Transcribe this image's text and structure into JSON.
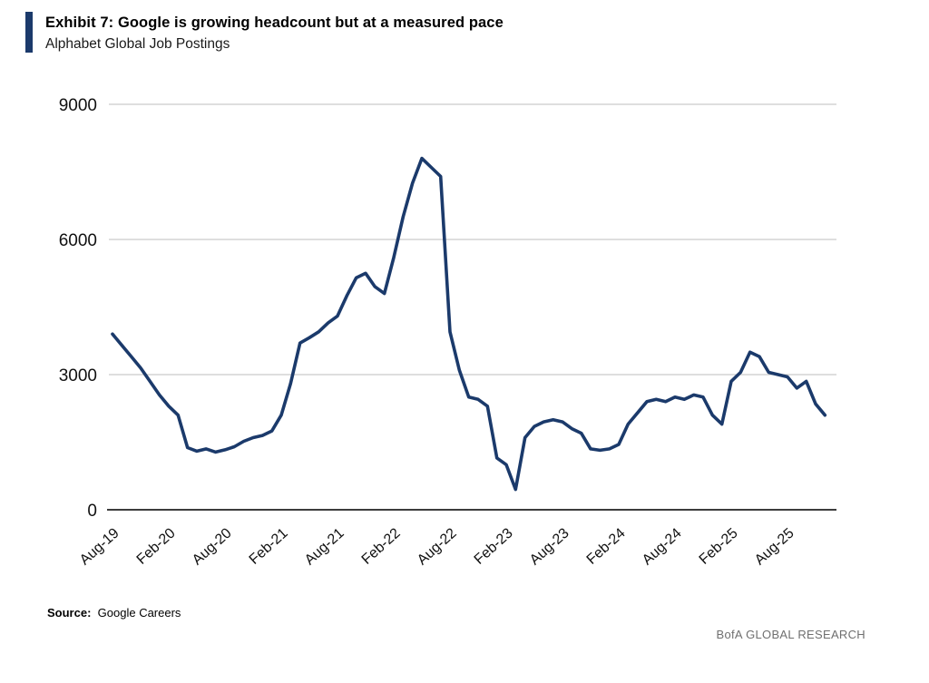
{
  "header": {
    "exhibit_title": "Exhibit 7: Google is growing headcount but at a measured pace",
    "subtitle": "Alphabet Global Job Postings"
  },
  "footer": {
    "source_label": "Source:",
    "source_text": "Google Careers",
    "branding": "BofA GLOBAL RESEARCH"
  },
  "colors": {
    "line": "#1b3a6b",
    "accent_bar": "#1b3a6b",
    "gridline": "#c9c9c9",
    "axis": "#3c3c3c",
    "tick_text": "#111111",
    "branding_text": "#6f6f6f"
  },
  "chart_data": {
    "type": "line",
    "title": "Alphabet Global Job Postings",
    "xlabel": "",
    "ylabel": "",
    "ylim": [
      0,
      9000
    ],
    "yticks": [
      0,
      3000,
      6000,
      9000
    ],
    "grid": "horizontal",
    "legend": "none",
    "xtick_labels": [
      "Aug-19",
      "Feb-20",
      "Aug-20",
      "Feb-21",
      "Aug-21",
      "Feb-22",
      "Aug-22",
      "Feb-23",
      "Aug-23",
      "Feb-24",
      "Aug-24",
      "Feb-25",
      "Aug-25"
    ],
    "xtick_every_months": 6,
    "series": [
      {
        "name": "Alphabet Global Job Postings",
        "months": [
          "Aug-19",
          "Sep-19",
          "Oct-19",
          "Nov-19",
          "Dec-19",
          "Jan-20",
          "Feb-20",
          "Mar-20",
          "Apr-20",
          "May-20",
          "Jun-20",
          "Jul-20",
          "Aug-20",
          "Sep-20",
          "Oct-20",
          "Nov-20",
          "Dec-20",
          "Jan-21",
          "Feb-21",
          "Mar-21",
          "Apr-21",
          "May-21",
          "Jun-21",
          "Jul-21",
          "Aug-21",
          "Sep-21",
          "Oct-21",
          "Nov-21",
          "Dec-21",
          "Jan-22",
          "Feb-22",
          "Mar-22",
          "Apr-22",
          "May-22",
          "Jun-22",
          "Jul-22",
          "Aug-22",
          "Sep-22",
          "Oct-22",
          "Nov-22",
          "Dec-22",
          "Jan-23",
          "Feb-23",
          "Mar-23",
          "Apr-23",
          "May-23",
          "Jun-23",
          "Jul-23",
          "Aug-23",
          "Sep-23",
          "Oct-23",
          "Nov-23",
          "Dec-23",
          "Jan-24",
          "Feb-24",
          "Mar-24",
          "Apr-24",
          "May-24",
          "Jun-24",
          "Jul-24",
          "Aug-24",
          "Sep-24",
          "Oct-24",
          "Nov-24",
          "Dec-24",
          "Jan-25",
          "Feb-25",
          "Mar-25",
          "Apr-25",
          "May-25",
          "Jun-25",
          "Jul-25",
          "Aug-25",
          "Sep-25",
          "Oct-25",
          "Nov-25",
          "Dec-25"
        ],
        "values": [
          3900,
          3650,
          3400,
          3150,
          2850,
          2550,
          2300,
          2100,
          1380,
          1300,
          1350,
          1280,
          1330,
          1400,
          1520,
          1600,
          1650,
          1750,
          2100,
          2800,
          3700,
          3820,
          3950,
          4150,
          4300,
          4750,
          5150,
          5250,
          4950,
          4800,
          5600,
          6500,
          7250,
          7800,
          7600,
          7400,
          3950,
          3100,
          2500,
          2450,
          2300,
          1150,
          1000,
          450,
          1600,
          1850,
          1950,
          2000,
          1950,
          1800,
          1700,
          1350,
          1320,
          1350,
          1450,
          1900,
          2150,
          2400,
          2450,
          2400,
          2500,
          2450,
          2550,
          2500,
          2100,
          1900,
          2850,
          3050,
          3500,
          3400,
          3050,
          3000,
          2950,
          2700,
          2850,
          2350,
          2100
        ]
      }
    ]
  }
}
